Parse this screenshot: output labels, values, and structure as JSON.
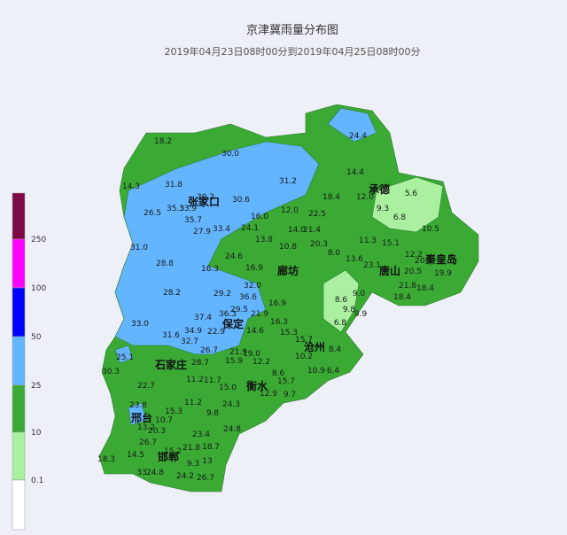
{
  "header": {
    "title": "京津冀雨量分布图",
    "subtitle": "2019年04月23日08时00分到2019年04月25日08时00分"
  },
  "legend": {
    "labels": [
      "250",
      "100",
      "50",
      "25",
      "10",
      "0.1"
    ],
    "colors": [
      "#7d0a46",
      "#ff00ff",
      "#0000ff",
      "#63b5ff",
      "#3aaa35",
      "#aaf0a0",
      "#ffffff"
    ]
  },
  "map": {
    "colors": {
      "land": "#3aaa35",
      "heavy": "#63b5ff",
      "light": "#aaf0a0"
    },
    "cities": [
      "张家口",
      "承德",
      "唐山",
      "秦皇岛",
      "廊坊",
      "保定",
      "石家庄",
      "衡水",
      "沧州",
      "邢台",
      "邯郸"
    ],
    "stations": [
      "18.2",
      "30.0",
      "24.4",
      "14.3",
      "31.8",
      "31.2",
      "14.4",
      "5.6",
      "26.5",
      "35.3",
      "33.9",
      "30.2",
      "30.6",
      "12.0",
      "18.4",
      "12.0",
      "9.3",
      "6.8",
      "35.7",
      "16.0",
      "22.5",
      "27.9",
      "33.4",
      "24.1",
      "14.0",
      "21.4",
      "10.5",
      "31.0",
      "13.8",
      "10.8",
      "20.3",
      "11.3",
      "15.1",
      "8.0",
      "12.2",
      "28.8",
      "24.6",
      "13.6",
      "23.1",
      "20.3",
      "16.3",
      "16.9",
      "19.9",
      "20.5",
      "28.2",
      "32.0",
      "29.2",
      "36.6",
      "21.8",
      "18.4",
      "9.0",
      "8.6",
      "33.0",
      "29.5",
      "37.4",
      "16.9",
      "9.8",
      "36.3",
      "21.9",
      "9.9",
      "18.4",
      "31.6",
      "34.9",
      "22.9",
      "14.6",
      "16.3",
      "15.3",
      "6.8",
      "32.7",
      "26.7",
      "15.7",
      "21.9",
      "19.0",
      "25.1",
      "12.2",
      "8.4",
      "10.2",
      "30.3",
      "28.7",
      "15.9",
      "8.6",
      "10.9",
      "6.4",
      "11.2",
      "11.7",
      "15.0",
      "15.7",
      "11.2",
      "24.3",
      "9.8",
      "22.7",
      "23.8",
      "13.2",
      "10.7",
      "15.3",
      "24.8",
      "23.4",
      "18.3",
      "14.5",
      "26.7",
      "20.3",
      "21.8",
      "18.7",
      "15.2",
      "9.3",
      "13",
      "33",
      "24.8",
      "24.2",
      "26.7",
      "9.7",
      "12.9"
    ]
  }
}
